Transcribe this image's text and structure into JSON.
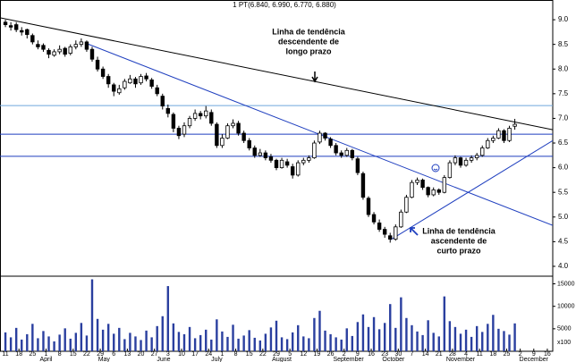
{
  "header": "1 PT(6.840, 6.990, 6.770, 6.880)",
  "chart_data": {
    "type": "candlestick",
    "ohlc": [
      [
        8.95,
        9.0,
        8.85,
        8.9
      ],
      [
        8.88,
        8.95,
        8.78,
        8.85
      ],
      [
        8.9,
        8.95,
        8.75,
        8.8
      ],
      [
        8.78,
        8.85,
        8.68,
        8.75
      ],
      [
        8.8,
        8.82,
        8.62,
        8.7
      ],
      [
        8.68,
        8.72,
        8.5,
        8.55
      ],
      [
        8.5,
        8.58,
        8.4,
        8.45
      ],
      [
        8.48,
        8.52,
        8.35,
        8.4
      ],
      [
        8.38,
        8.42,
        8.22,
        8.3
      ],
      [
        8.28,
        8.4,
        8.25,
        8.35
      ],
      [
        8.35,
        8.48,
        8.3,
        8.4
      ],
      [
        8.42,
        8.45,
        8.25,
        8.3
      ],
      [
        8.32,
        8.5,
        8.28,
        8.45
      ],
      [
        8.45,
        8.58,
        8.4,
        8.5
      ],
      [
        8.5,
        8.62,
        8.45,
        8.55
      ],
      [
        8.55,
        8.58,
        8.35,
        8.4
      ],
      [
        8.4,
        8.45,
        8.15,
        8.2
      ],
      [
        8.18,
        8.25,
        7.95,
        8.0
      ],
      [
        8.0,
        8.05,
        7.8,
        7.85
      ],
      [
        7.85,
        7.9,
        7.62,
        7.7
      ],
      [
        7.68,
        7.72,
        7.45,
        7.55
      ],
      [
        7.52,
        7.68,
        7.48,
        7.6
      ],
      [
        7.62,
        7.8,
        7.58,
        7.75
      ],
      [
        7.72,
        7.88,
        7.7,
        7.8
      ],
      [
        7.8,
        7.84,
        7.62,
        7.7
      ],
      [
        7.72,
        7.9,
        7.68,
        7.85
      ],
      [
        7.86,
        7.92,
        7.75,
        7.8
      ],
      [
        7.78,
        7.82,
        7.6,
        7.65
      ],
      [
        7.62,
        7.68,
        7.45,
        7.5
      ],
      [
        7.45,
        7.5,
        7.18,
        7.25
      ],
      [
        7.2,
        7.28,
        7.02,
        7.1
      ],
      [
        7.08,
        7.12,
        6.72,
        6.8
      ],
      [
        6.8,
        6.85,
        6.58,
        6.65
      ],
      [
        6.68,
        6.92,
        6.62,
        6.85
      ],
      [
        6.85,
        7.05,
        6.8,
        7.0
      ],
      [
        7.0,
        7.18,
        6.95,
        7.1
      ],
      [
        7.1,
        7.15,
        6.98,
        7.05
      ],
      [
        7.05,
        7.25,
        7.0,
        7.15
      ],
      [
        7.12,
        7.18,
        6.85,
        6.9
      ],
      [
        6.88,
        6.92,
        6.4,
        6.45
      ],
      [
        6.45,
        6.68,
        6.4,
        6.6
      ],
      [
        6.6,
        6.9,
        6.58,
        6.85
      ],
      [
        6.85,
        6.98,
        6.8,
        6.9
      ],
      [
        6.9,
        6.95,
        6.65,
        6.7
      ],
      [
        6.7,
        6.75,
        6.5,
        6.55
      ],
      [
        6.55,
        6.6,
        6.35,
        6.4
      ],
      [
        6.4,
        6.45,
        6.2,
        6.25
      ],
      [
        6.25,
        6.38,
        6.22,
        6.3
      ],
      [
        6.3,
        6.35,
        6.15,
        6.2
      ],
      [
        6.22,
        6.28,
        6.1,
        6.15
      ],
      [
        6.15,
        6.18,
        5.95,
        6.0
      ],
      [
        6.0,
        6.2,
        5.98,
        6.15
      ],
      [
        6.12,
        6.18,
        6.0,
        6.05
      ],
      [
        6.02,
        6.08,
        5.78,
        5.85
      ],
      [
        5.85,
        6.15,
        5.82,
        6.1
      ],
      [
        6.1,
        6.2,
        6.05,
        6.15
      ],
      [
        6.15,
        6.25,
        6.1,
        6.2
      ],
      [
        6.2,
        6.55,
        6.18,
        6.5
      ],
      [
        6.52,
        6.75,
        6.48,
        6.7
      ],
      [
        6.7,
        6.72,
        6.55,
        6.6
      ],
      [
        6.58,
        6.62,
        6.4,
        6.45
      ],
      [
        6.45,
        6.5,
        6.25,
        6.3
      ],
      [
        6.3,
        6.35,
        6.2,
        6.25
      ],
      [
        6.25,
        6.4,
        6.22,
        6.35
      ],
      [
        6.35,
        6.38,
        6.15,
        6.2
      ],
      [
        6.18,
        6.22,
        5.85,
        5.9
      ],
      [
        5.88,
        5.92,
        5.35,
        5.4
      ],
      [
        5.38,
        5.42,
        5.0,
        5.05
      ],
      [
        5.05,
        5.1,
        4.85,
        4.9
      ],
      [
        4.88,
        4.95,
        4.7,
        4.75
      ],
      [
        4.75,
        4.8,
        4.58,
        4.65
      ],
      [
        4.62,
        4.68,
        4.48,
        4.55
      ],
      [
        4.55,
        4.85,
        4.52,
        4.8
      ],
      [
        4.8,
        5.15,
        4.78,
        5.1
      ],
      [
        5.1,
        5.45,
        5.08,
        5.4
      ],
      [
        5.4,
        5.75,
        5.38,
        5.7
      ],
      [
        5.7,
        5.8,
        5.65,
        5.75
      ],
      [
        5.75,
        5.78,
        5.55,
        5.6
      ],
      [
        5.6,
        5.62,
        5.4,
        5.45
      ],
      [
        5.45,
        5.6,
        5.42,
        5.55
      ],
      [
        5.55,
        5.58,
        5.45,
        5.5
      ],
      [
        5.5,
        5.85,
        5.48,
        5.8
      ],
      [
        5.8,
        6.15,
        5.78,
        6.1
      ],
      [
        6.1,
        6.25,
        6.05,
        6.2
      ],
      [
        6.2,
        6.22,
        6.0,
        6.05
      ],
      [
        6.05,
        6.2,
        6.02,
        6.15
      ],
      [
        6.15,
        6.25,
        6.1,
        6.2
      ],
      [
        6.2,
        6.3,
        6.15,
        6.25
      ],
      [
        6.25,
        6.45,
        6.22,
        6.4
      ],
      [
        6.4,
        6.6,
        6.38,
        6.55
      ],
      [
        6.55,
        6.65,
        6.5,
        6.6
      ],
      [
        6.6,
        6.8,
        6.58,
        6.75
      ],
      [
        6.75,
        6.78,
        6.5,
        6.55
      ],
      [
        6.55,
        6.85,
        6.52,
        6.8
      ],
      [
        6.84,
        6.99,
        6.77,
        6.88
      ]
    ],
    "volume": [
      4200,
      3100,
      5200,
      2600,
      3800,
      6100,
      2900,
      4500,
      3300,
      2200,
      3700,
      5100,
      2800,
      4100,
      6300,
      3500,
      16000,
      7200,
      4800,
      6100,
      3900,
      5200,
      2700,
      4100,
      3300,
      2500,
      4600,
      3100,
      5600,
      7800,
      14500,
      6200,
      4300,
      3800,
      5400,
      2900,
      3600,
      4800,
      2600,
      7100,
      4400,
      3200,
      5900,
      2800,
      3500,
      4700,
      3000,
      2400,
      3900,
      5300,
      6800,
      3100,
      2700,
      4200,
      5800,
      3300,
      2900,
      7400,
      9000,
      4600,
      3800,
      3100,
      2600,
      5100,
      3400,
      6500,
      8200,
      5400,
      7600,
      4900,
      6300,
      10500,
      5200,
      12000,
      7400,
      5800,
      4400,
      3600,
      6900,
      4100,
      3300,
      12200,
      6700,
      5400,
      3900,
      4800,
      3200,
      5600,
      4300,
      6100,
      8100,
      5000,
      4500,
      3700,
      6200
    ],
    "volume_color": "#2a3f9f",
    "xlim": [
      -1,
      101
    ],
    "xticks": [
      {
        "value": 0,
        "label": "11"
      },
      {
        "value": 2.5,
        "label": "18"
      },
      {
        "value": 5,
        "label": "25"
      },
      {
        "value": 7.5,
        "label": "1"
      },
      {
        "value": 10,
        "label": "8"
      },
      {
        "value": 12.5,
        "label": "15"
      },
      {
        "value": 15,
        "label": "22"
      },
      {
        "value": 17.5,
        "label": "29"
      },
      {
        "value": 20,
        "label": "6"
      },
      {
        "value": 22.5,
        "label": "13"
      },
      {
        "value": 25,
        "label": "20"
      },
      {
        "value": 27.5,
        "label": "27"
      },
      {
        "value": 30,
        "label": "3"
      },
      {
        "value": 32.5,
        "label": "10"
      },
      {
        "value": 35,
        "label": "17"
      },
      {
        "value": 37.5,
        "label": "24"
      },
      {
        "value": 40,
        "label": "1"
      },
      {
        "value": 42.5,
        "label": "8"
      },
      {
        "value": 45,
        "label": "15"
      },
      {
        "value": 47.5,
        "label": "22"
      },
      {
        "value": 50,
        "label": "29"
      },
      {
        "value": 52.5,
        "label": "5"
      },
      {
        "value": 55,
        "label": "12"
      },
      {
        "value": 57.5,
        "label": "19"
      },
      {
        "value": 60,
        "label": "26"
      },
      {
        "value": 62.5,
        "label": "2"
      },
      {
        "value": 65,
        "label": "9"
      },
      {
        "value": 67.5,
        "label": "16"
      },
      {
        "value": 70,
        "label": "23"
      },
      {
        "value": 72.5,
        "label": "30"
      },
      {
        "value": 75,
        "label": "7"
      },
      {
        "value": 77.5,
        "label": "14"
      },
      {
        "value": 80,
        "label": "21"
      },
      {
        "value": 82.5,
        "label": "28"
      },
      {
        "value": 85,
        "label": "4"
      },
      {
        "value": 87.5,
        "label": "11"
      },
      {
        "value": 90,
        "label": "18"
      },
      {
        "value": 92.5,
        "label": "25"
      },
      {
        "value": 95,
        "label": "2"
      },
      {
        "value": 97.5,
        "label": "9"
      },
      {
        "value": 100,
        "label": "16"
      }
    ],
    "months": [
      {
        "value": 7.5,
        "label": "April"
      },
      {
        "value": 18.2,
        "label": "May"
      },
      {
        "value": 29.2,
        "label": "June"
      },
      {
        "value": 39,
        "label": "July"
      },
      {
        "value": 51,
        "label": "August"
      },
      {
        "value": 63.3,
        "label": "September"
      },
      {
        "value": 71.6,
        "label": "October"
      },
      {
        "value": 84,
        "label": "November"
      },
      {
        "value": 97.5,
        "label": "December"
      }
    ],
    "ylim": [
      3.8,
      9.4
    ],
    "yticks": [
      {
        "value": 4,
        "label": "4.0"
      },
      {
        "value": 4.5,
        "label": "4.5"
      },
      {
        "value": 5,
        "label": "5.0"
      },
      {
        "value": 5.5,
        "label": "5.5"
      },
      {
        "value": 6,
        "label": "6.0"
      },
      {
        "value": 6.5,
        "label": "6.5"
      },
      {
        "value": 7,
        "label": "7.0"
      },
      {
        "value": 7.5,
        "label": "7.5"
      },
      {
        "value": 8,
        "label": "8.0"
      },
      {
        "value": 8.5,
        "label": "8.5"
      },
      {
        "value": 9,
        "label": "9.0"
      }
    ],
    "y2lim": [
      0,
      16700
    ],
    "y2ticks": [
      5000,
      10000,
      15000
    ],
    "y2label": "x100",
    "hlines": [
      {
        "value": 7.26,
        "color": "#6fa8dc"
      },
      {
        "value": 6.68,
        "color": "#1f3fbf"
      },
      {
        "value": 6.23,
        "color": "#1f3fbf"
      }
    ],
    "trendlines": [
      {
        "color": "#000000",
        "points": [
          [
            -1,
            9.04
          ],
          [
            101,
            6.77
          ]
        ]
      },
      {
        "color": "#1f3fbf",
        "points": [
          [
            14.7,
            8.53
          ],
          [
            101,
            4.83
          ]
        ]
      },
      {
        "color": "#1f3fbf",
        "points": [
          [
            71.1,
            4.54
          ],
          [
            101,
            6.55
          ]
        ]
      }
    ],
    "annotations": [
      {
        "lines": [
          "Linha de tendência",
          "descendente de",
          "longo prazo"
        ],
        "color": "#000000"
      },
      {
        "lines": [
          "Linha de tendência",
          "ascendente de",
          "curto prazo"
        ],
        "color": "#1f3fbf"
      }
    ]
  }
}
